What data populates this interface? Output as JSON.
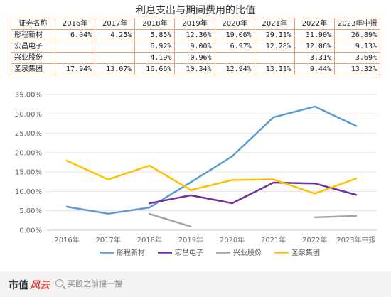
{
  "table": {
    "title": "利息支出与期间费用的比值",
    "header": [
      "证券名称",
      "2016年",
      "2017年",
      "2018年",
      "2019年",
      "2020年",
      "2021年",
      "2022年",
      "2023年中报"
    ],
    "rows": [
      [
        "彤程新材",
        "6.04%",
        "4.25%",
        "5.85%",
        "12.36%",
        "19.06%",
        "29.11%",
        "31.90%",
        "26.89%"
      ],
      [
        "宏昌电子",
        "",
        "",
        "6.92%",
        "9.00%",
        "6.97%",
        "12.28%",
        "12.06%",
        "9.13%"
      ],
      [
        "兴业股份",
        "",
        "",
        "4.19%",
        "0.96%",
        "",
        "",
        "3.31%",
        "3.69%"
      ],
      [
        "圣泉集团",
        "17.94%",
        "13.07%",
        "16.66%",
        "10.34%",
        "12.94%",
        "13.11%",
        "9.44%",
        "13.32%"
      ]
    ]
  },
  "chart_data": {
    "type": "line",
    "categories": [
      "2016年",
      "2017年",
      "2018年",
      "2019年",
      "2020年",
      "2021年",
      "2022年",
      "2023年中报"
    ],
    "yticks": [
      "0.00%",
      "5.00%",
      "10.00%",
      "15.00%",
      "20.00%",
      "25.00%",
      "30.00%",
      "35.00%"
    ],
    "ylim": [
      0,
      35
    ],
    "grid": true,
    "legend_position": "bottom",
    "series": [
      {
        "name": "彤程新材",
        "color": "#5b9bd5",
        "values": [
          6.04,
          4.25,
          5.85,
          12.36,
          19.06,
          29.11,
          31.9,
          26.89
        ]
      },
      {
        "name": "宏昌电子",
        "color": "#7030a0",
        "values": [
          null,
          null,
          6.92,
          9.0,
          6.97,
          12.28,
          12.06,
          9.13
        ]
      },
      {
        "name": "兴业股份",
        "color": "#a5a5a5",
        "values": [
          null,
          null,
          4.19,
          0.96,
          null,
          null,
          3.31,
          3.69
        ]
      },
      {
        "name": "圣泉集团",
        "color": "#ffc000",
        "values": [
          17.94,
          13.07,
          16.66,
          10.34,
          12.94,
          13.11,
          9.44,
          13.32
        ]
      }
    ]
  },
  "footer": {
    "brand_a": "市值",
    "brand_b": "风云",
    "search_placeholder": "买股之前搜一搜"
  }
}
